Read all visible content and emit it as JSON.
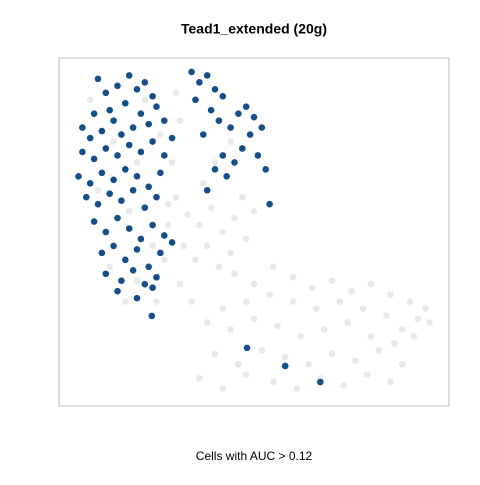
{
  "chart_data": {
    "type": "scatter",
    "title": "Tead1_extended (20g)",
    "x_label": "Cells with AUC > 0.12",
    "xlim": [
      0,
      100
    ],
    "ylim": [
      0,
      100
    ],
    "series": [
      {
        "color": "#e8e8e8",
        "x": [
          45,
          50,
          55,
          60,
          65,
          70,
          75,
          80,
          85,
          90,
          94,
          92,
          88,
          84,
          78,
          72,
          66,
          60,
          54,
          48,
          42,
          38,
          44,
          50,
          56,
          62,
          68,
          74,
          80,
          86,
          91,
          95,
          40,
          46,
          52,
          58,
          64,
          70,
          76,
          82,
          88,
          36,
          42,
          48,
          55,
          61,
          67,
          73,
          79,
          85,
          30,
          33,
          36,
          39,
          42,
          45,
          48,
          32,
          35,
          38,
          41,
          44,
          47,
          50,
          28,
          31,
          34,
          37,
          40,
          44,
          8,
          14,
          20,
          26,
          10,
          18,
          24,
          13,
          28,
          22,
          30,
          31,
          29,
          27,
          20,
          17,
          25
        ],
        "y": [
          38,
          35,
          40,
          37,
          34,
          36,
          33,
          35,
          32,
          30,
          28,
          25,
          22,
          26,
          28,
          30,
          28,
          30,
          32,
          30,
          28,
          24,
          22,
          25,
          23,
          20,
          22,
          24,
          20,
          18,
          20,
          24,
          15,
          12,
          16,
          14,
          12,
          15,
          13,
          16,
          12,
          8,
          5,
          9,
          7,
          5,
          8,
          6,
          9,
          7,
          60,
          55,
          52,
          57,
          50,
          54,
          48,
          46,
          42,
          46,
          40,
          44,
          60,
          56,
          52,
          35,
          30,
          64,
          70,
          76,
          88,
          76,
          70,
          78,
          62,
          56,
          46,
          40,
          58,
          88,
          90,
          82,
          70,
          42,
          36,
          30,
          30
        ]
      },
      {
        "color": "#134f8c",
        "x": [
          10,
          12,
          15,
          18,
          20,
          22,
          24,
          17,
          13,
          9,
          6,
          8,
          11,
          14,
          16,
          19,
          21,
          23,
          25,
          27,
          6,
          9,
          12,
          15,
          18,
          21,
          24,
          27,
          29,
          5,
          8,
          11,
          14,
          17,
          20,
          23,
          26,
          7,
          10,
          13,
          16,
          19,
          22,
          25,
          9,
          12,
          15,
          18,
          21,
          24,
          27,
          11,
          14,
          17,
          20,
          23,
          26,
          29,
          12,
          16,
          19,
          22,
          25,
          15,
          20,
          24,
          23.8,
          48.2,
          58,
          67,
          34,
          36,
          38,
          40,
          42,
          35,
          39,
          41,
          44,
          37,
          46,
          48,
          50,
          52,
          49,
          47,
          45,
          43,
          51,
          53,
          40,
          38,
          54,
          42
        ],
        "y": [
          94,
          90,
          92,
          95,
          91,
          93,
          89,
          87,
          85,
          84,
          80,
          77,
          79,
          82,
          78,
          80,
          84,
          81,
          86,
          82,
          73,
          71,
          74,
          72,
          75,
          73,
          76,
          72,
          77,
          66,
          64,
          67,
          65,
          68,
          66,
          63,
          67,
          60,
          58,
          61,
          59,
          62,
          57,
          60,
          53,
          50,
          54,
          51,
          48,
          52,
          49,
          44,
          46,
          42,
          45,
          40,
          44,
          47,
          38,
          36,
          39,
          35,
          37,
          33,
          31,
          34,
          25.9,
          16.7,
          11.5,
          6.9,
          96,
          93,
          95,
          91,
          89,
          88,
          85,
          82,
          80,
          78,
          84,
          86,
          83,
          80,
          78,
          74,
          70,
          66,
          72,
          68,
          68,
          62,
          58,
          72
        ]
      }
    ]
  }
}
